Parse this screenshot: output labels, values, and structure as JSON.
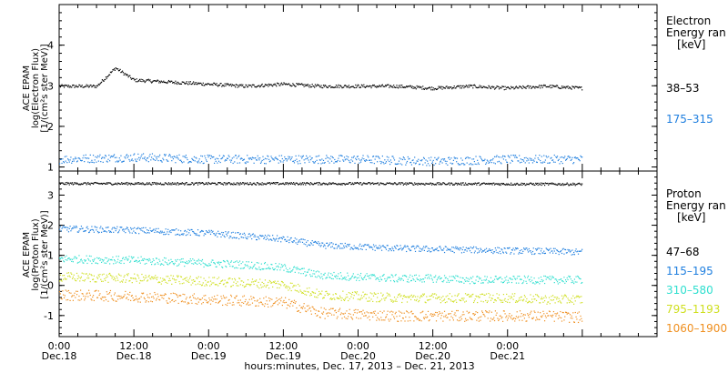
{
  "chart_data": [
    {
      "type": "scatter",
      "ylabel": [
        "ACE EPAM",
        "log(Electron Flux)",
        "[1/(cm²s ster MeV)]"
      ],
      "ylim": [
        0.9,
        5.0
      ],
      "yticks": [
        1,
        2,
        3,
        4
      ],
      "legend_title": [
        "Electron",
        "Energy ran",
        "[keV]"
      ],
      "legend_placement": "right",
      "series": [
        {
          "name": "38–53",
          "color": "#000000",
          "x": [
            0,
            6,
            9,
            12,
            18,
            24,
            30,
            36,
            42,
            48,
            54,
            60,
            66,
            72,
            78,
            84
          ],
          "y": [
            3.0,
            3.0,
            3.45,
            3.15,
            3.1,
            3.05,
            3.0,
            3.05,
            3.0,
            3.0,
            3.0,
            2.95,
            3.0,
            2.95,
            3.0,
            2.95
          ]
        },
        {
          "name": "175–315",
          "color": "#1f7fdf",
          "x": [
            0,
            12,
            24,
            36,
            48,
            60,
            72,
            84
          ],
          "y": [
            1.2,
            1.25,
            1.2,
            1.2,
            1.2,
            1.15,
            1.2,
            1.2
          ]
        }
      ]
    },
    {
      "type": "scatter",
      "ylabel": [
        "ACE EPAM",
        "log(Proton Flux)",
        "[1/(cm²s ster MeV)]"
      ],
      "ylim": [
        -1.7,
        3.8
      ],
      "yticks": [
        -1,
        0,
        1,
        2,
        3
      ],
      "legend_title": [
        "Proton",
        "Energy ran",
        "[keV]"
      ],
      "legend_placement": "right",
      "series": [
        {
          "name": "47–68",
          "color": "#000000",
          "x": [
            0,
            24,
            48,
            84
          ],
          "y": [
            3.4,
            3.4,
            3.4,
            3.38
          ]
        },
        {
          "name": "115–195",
          "color": "#1f7fdf",
          "x": [
            0,
            12,
            24,
            30,
            36,
            42,
            48,
            54,
            60,
            66,
            72,
            78,
            84
          ],
          "y": [
            1.9,
            1.85,
            1.75,
            1.65,
            1.55,
            1.35,
            1.3,
            1.25,
            1.22,
            1.2,
            1.17,
            1.15,
            1.12
          ]
        },
        {
          "name": "310–580",
          "color": "#2fdfcf",
          "x": [
            0,
            12,
            24,
            30,
            36,
            42,
            48,
            54,
            60,
            66,
            72,
            78,
            84
          ],
          "y": [
            0.9,
            0.85,
            0.75,
            0.7,
            0.6,
            0.35,
            0.3,
            0.25,
            0.25,
            0.2,
            0.2,
            0.2,
            0.2
          ]
        },
        {
          "name": "795–1193",
          "color": "#cfdf1f",
          "x": [
            0,
            12,
            24,
            30,
            36,
            42,
            48,
            54,
            60,
            66,
            72,
            78,
            84
          ],
          "y": [
            0.3,
            0.25,
            0.15,
            0.1,
            0.05,
            -0.3,
            -0.35,
            -0.4,
            -0.4,
            -0.4,
            -0.4,
            -0.45,
            -0.45
          ]
        },
        {
          "name": "1060–1900",
          "color": "#ef8f1f",
          "x": [
            0,
            12,
            24,
            30,
            36,
            42,
            48,
            54,
            60,
            66,
            72,
            78,
            84
          ],
          "y": [
            -0.3,
            -0.35,
            -0.45,
            -0.5,
            -0.55,
            -0.9,
            -0.95,
            -1.0,
            -1.0,
            -1.0,
            -1.0,
            -1.0,
            -1.05
          ]
        }
      ]
    }
  ],
  "xaxis": {
    "xlim": [
      0,
      96
    ],
    "ticks": [
      {
        "x": 0,
        "time": "0:00",
        "date": "Dec.18"
      },
      {
        "x": 12,
        "time": "12:00",
        "date": "Dec.18"
      },
      {
        "x": 24,
        "time": "0:00",
        "date": "Dec.19"
      },
      {
        "x": 36,
        "time": "12:00",
        "date": "Dec.19"
      },
      {
        "x": 48,
        "time": "0:00",
        "date": "Dec.20"
      },
      {
        "x": 60,
        "time": "12:00",
        "date": "Dec.20"
      },
      {
        "x": 72,
        "time": "0:00",
        "date": "Dec.21"
      }
    ],
    "label": "hours:minutes, Dec. 17, 2013 – Dec. 21, 2013"
  }
}
